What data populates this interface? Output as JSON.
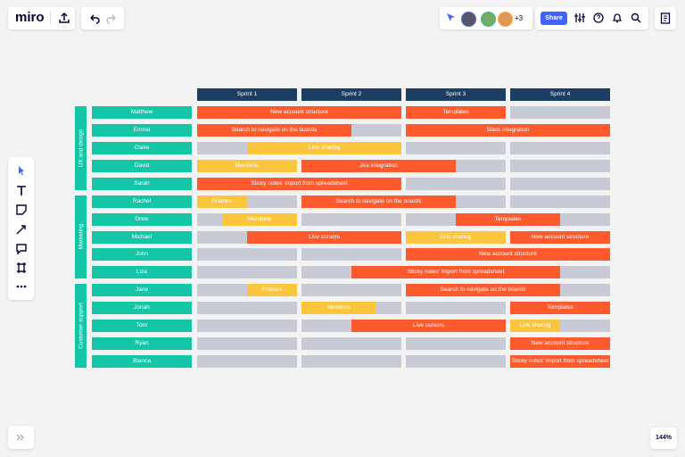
{
  "toolbar": {
    "logo": "miro",
    "collaborators_more": "+3",
    "share": "Share"
  },
  "board": {
    "sprints": [
      "Sprint 1",
      "Sprint 2",
      "Sprint 3",
      "Sprint 4"
    ],
    "groups": [
      {
        "label": "UX and design",
        "rows": [
          {
            "name": "Matthew",
            "tasks": [
              {
                "label": "New account structure",
                "color": "#fe5a2e"
              },
              {
                "label": "Templates",
                "color": "#fe5a2e"
              }
            ]
          },
          {
            "name": "Emma",
            "tasks": [
              {
                "label": "Search to navigate on the boards",
                "color": "#fe5a2e"
              },
              {
                "label": "Slack integration",
                "color": "#fe5a2e"
              }
            ]
          },
          {
            "name": "Claire",
            "tasks": [
              {
                "label": "Link sharing",
                "color": "#fbc53e"
              }
            ]
          },
          {
            "name": "David",
            "tasks": [
              {
                "label": "Mentions",
                "color": "#fbc53e"
              },
              {
                "label": "Jira integration",
                "color": "#fe5a2e"
              }
            ]
          },
          {
            "name": "Sarah",
            "tasks": [
              {
                "label": "Sticky notes' import from spreadsheet",
                "color": "#fe5a2e"
              }
            ]
          }
        ]
      },
      {
        "label": "Marketing",
        "rows": [
          {
            "name": "Rachel",
            "tasks": [
              {
                "label": "Frames",
                "color": "#fbc53e"
              },
              {
                "label": "Search to navigate on the boards",
                "color": "#fe5a2e"
              }
            ]
          },
          {
            "name": "Drew",
            "tasks": [
              {
                "label": "Mentions",
                "color": "#fbc53e"
              },
              {
                "label": "Templates",
                "color": "#fe5a2e"
              }
            ]
          },
          {
            "name": "Michael",
            "tasks": [
              {
                "label": "Live cursors",
                "color": "#fe5a2e"
              },
              {
                "label": "Link sharing",
                "color": "#fbc53e"
              },
              {
                "label": "New account structure",
                "color": "#fe5a2e"
              }
            ]
          },
          {
            "name": "John",
            "tasks": [
              {
                "label": "New account structure",
                "color": "#fe5a2e"
              }
            ]
          },
          {
            "name": "Liza",
            "tasks": [
              {
                "label": "Sticky notes' import from spreadsheet",
                "color": "#fe5a2e"
              }
            ]
          }
        ]
      },
      {
        "label": "Customer support",
        "rows": [
          {
            "name": "Jane",
            "tasks": [
              {
                "label": "Frames",
                "color": "#fbc53e"
              },
              {
                "label": "Search to navigate on the boards",
                "color": "#fe5a2e"
              }
            ]
          },
          {
            "name": "Jonah",
            "tasks": [
              {
                "label": "Mentions",
                "color": "#fbc53e"
              },
              {
                "label": "Templates",
                "color": "#fe5a2e"
              }
            ]
          },
          {
            "name": "Tom",
            "tasks": [
              {
                "label": "Live cursors",
                "color": "#fe5a2e"
              },
              {
                "label": "Link sharing",
                "color": "#fbc53e"
              }
            ]
          },
          {
            "name": "Ryan",
            "tasks": [
              {
                "label": "New account structure",
                "color": "#fe5a2e"
              }
            ]
          },
          {
            "name": "Bianca",
            "tasks": [
              {
                "label": "Sticky notes' import from spreadsheet",
                "color": "#fe5a2e"
              }
            ]
          }
        ]
      }
    ]
  },
  "zoom": "144%"
}
